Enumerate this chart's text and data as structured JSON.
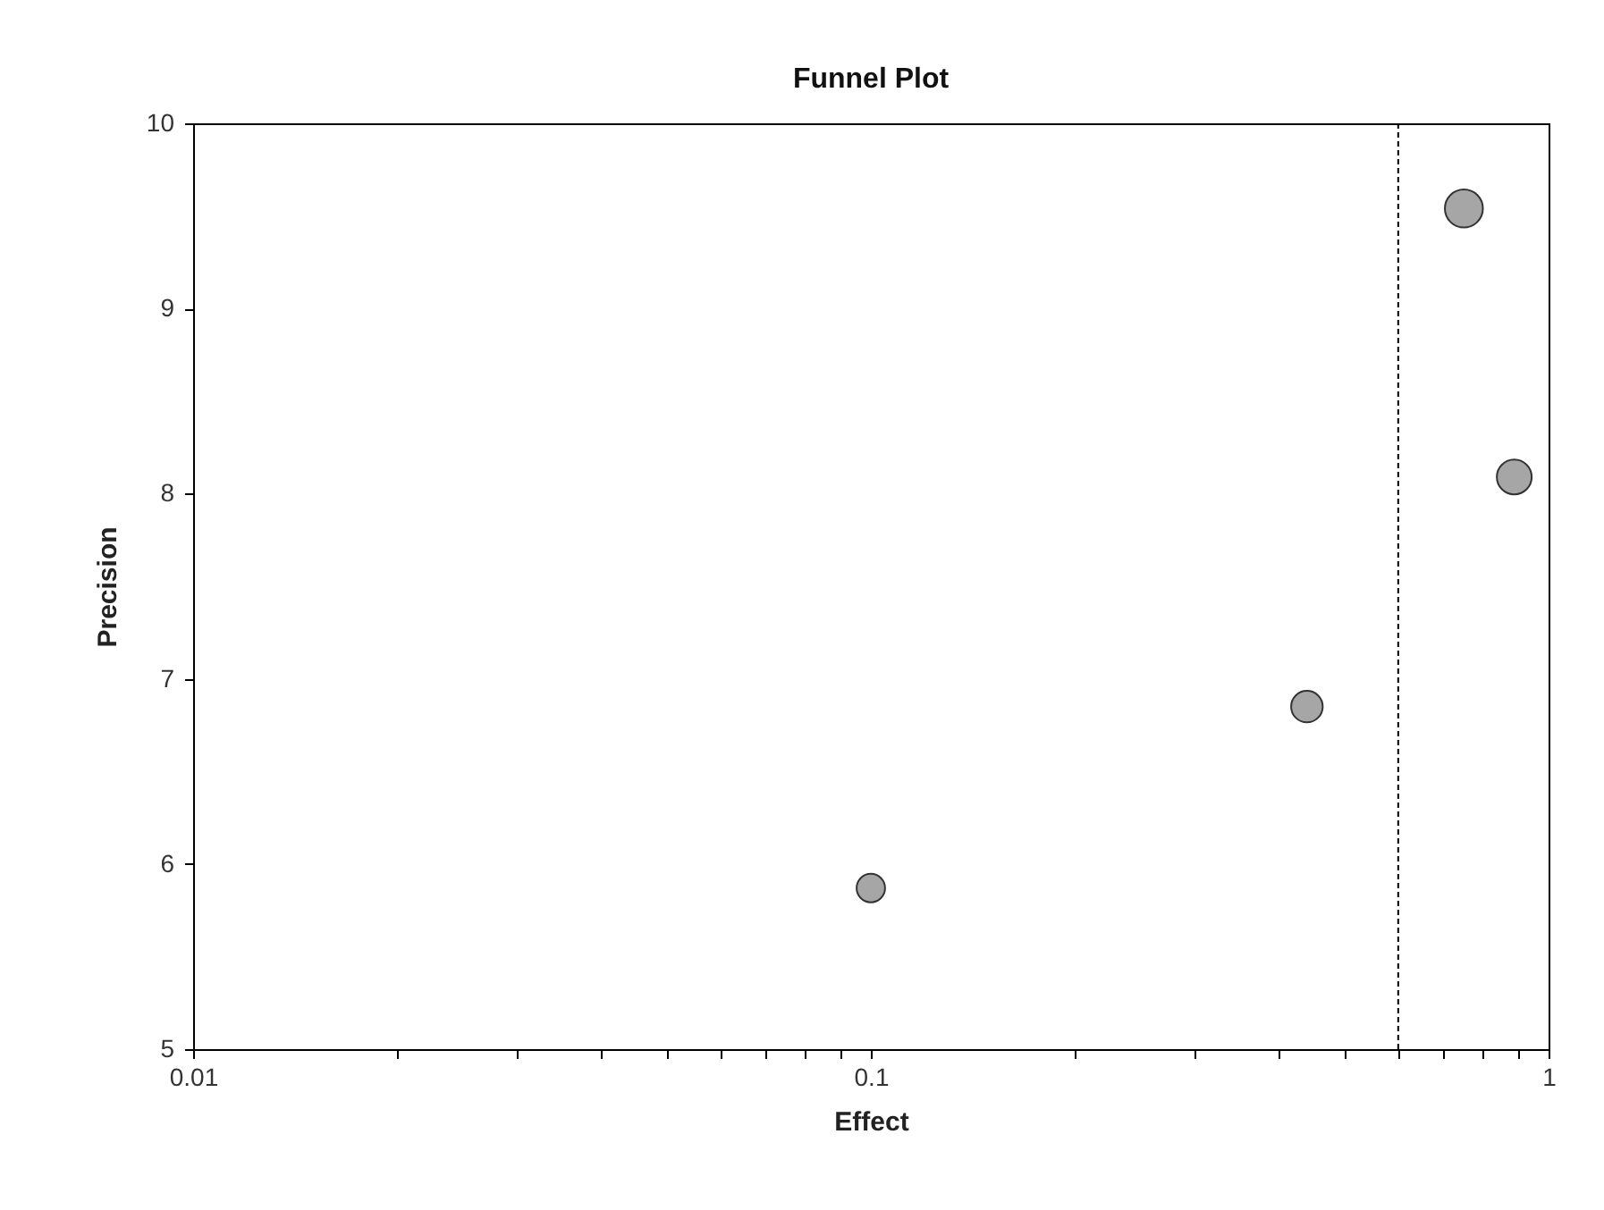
{
  "chart_data": {
    "type": "bubble",
    "title": "Funnel Plot",
    "xlabel": "Effect",
    "ylabel": "Precision",
    "x": [
      0.1,
      0.44,
      0.75,
      0.89
    ],
    "series": [
      {
        "color": "#a6a6a6",
        "values": [
          5.87,
          6.85,
          9.54,
          8.09
        ],
        "sizes": [
          0.56,
          0.69,
          1,
          0.84
        ]
      }
    ],
    "log": "x",
    "xlim": [
      0.01,
      1
    ],
    "ylim": [
      5,
      10
    ],
    "xticks": [
      0.01,
      {
        "value": 0.02,
        "label": null
      },
      {
        "value": 0.03,
        "label": null
      },
      {
        "value": 0.04,
        "label": null
      },
      {
        "value": 0.05,
        "label": null
      },
      {
        "value": 0.06,
        "label": null
      },
      {
        "value": 0.07,
        "label": null
      },
      {
        "value": 0.08,
        "label": null
      },
      {
        "value": 0.09,
        "label": null
      },
      0.1,
      {
        "value": 0.2,
        "label": null
      },
      {
        "value": 0.3,
        "label": null
      },
      {
        "value": 0.4,
        "label": null
      },
      {
        "value": 0.5,
        "label": null
      },
      {
        "value": 0.6,
        "label": null
      },
      {
        "value": 0.7,
        "label": null
      },
      {
        "value": 0.8,
        "label": null
      },
      {
        "value": 0.9,
        "label": null
      },
      1
    ],
    "yticks": [
      5,
      6,
      7,
      8,
      9,
      10
    ],
    "ref_lines": [
      {
        "axis": "x",
        "value": 0.6,
        "color": "#000000",
        "line_style": "dashed"
      }
    ],
    "grid": false,
    "marker": "circle"
  }
}
